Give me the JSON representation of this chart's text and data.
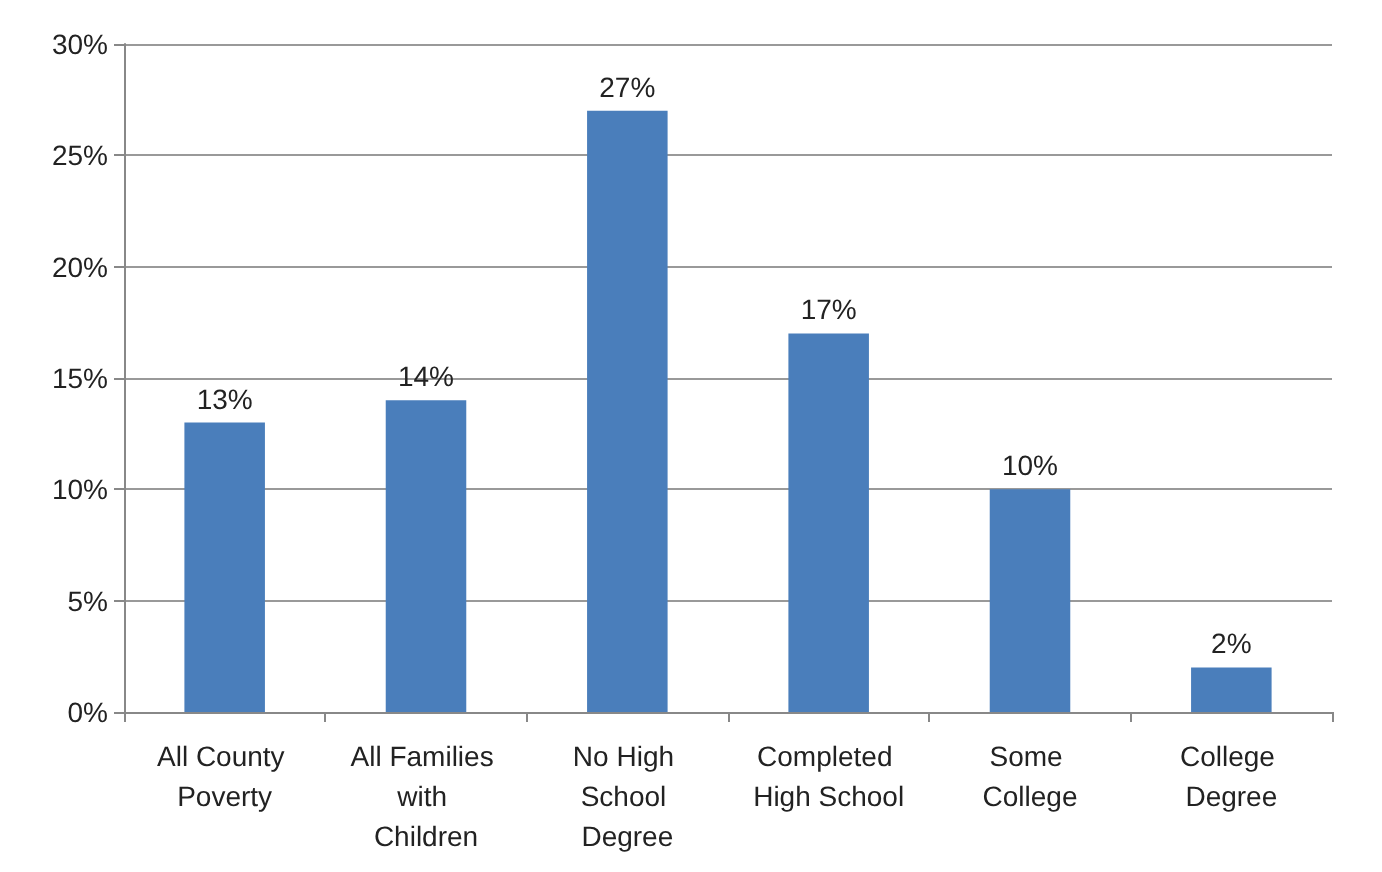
{
  "chart_data": {
    "type": "bar",
    "categories": [
      "All County Poverty",
      "All Families with Children",
      "No High School Degree",
      "Completed High School",
      "Some College",
      "College Degree"
    ],
    "values": [
      13,
      14,
      27,
      17,
      10,
      2
    ],
    "color": "#4a7ebb",
    "value_labels": [
      "13%",
      "14%",
      "27%",
      "17%",
      "10%",
      "2%"
    ],
    "ylim": [
      0,
      30
    ],
    "yticks": [
      {
        "value": 0,
        "label": "0%"
      },
      {
        "value": 5,
        "label": "5%"
      },
      {
        "value": 10,
        "label": "10%"
      },
      {
        "value": 15,
        "label": "15%"
      },
      {
        "value": 20,
        "label": "20%"
      },
      {
        "value": 25,
        "label": "25%"
      },
      {
        "value": 30,
        "label": "30%"
      }
    ],
    "grid": "y"
  }
}
